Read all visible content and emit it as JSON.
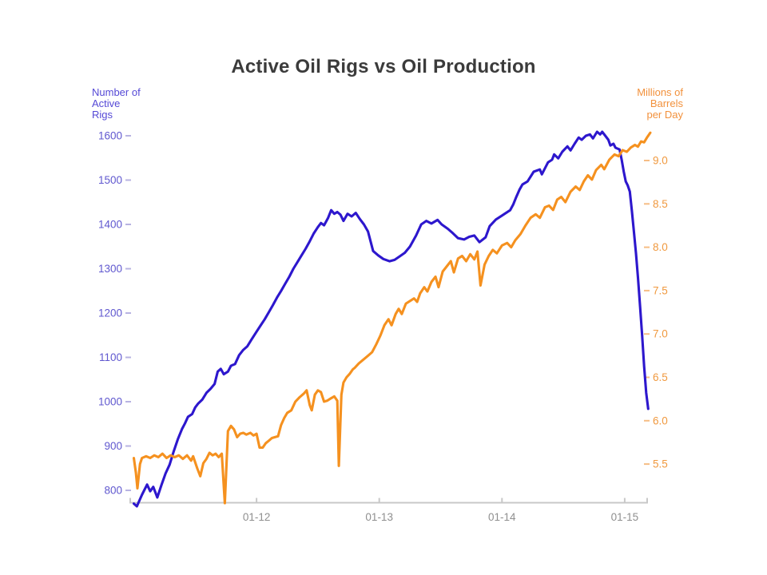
{
  "title": "Active Oil Rigs vs Oil Production",
  "chart_data": {
    "type": "line",
    "title": "Active Oil Rigs vs Oil Production",
    "x_unit": "months since 2011-01 (t)",
    "x_axis": {
      "tick_positions": [
        12,
        24,
        36,
        48
      ],
      "tick_labels": [
        "01-12",
        "01-13",
        "01-14",
        "01-15"
      ],
      "label_color": "#8f8f8f",
      "line_color": "#c8c8c8"
    },
    "left_axis": {
      "header_lines": [
        "Number of",
        "Active",
        "Rigs"
      ],
      "ticks": [
        800,
        900,
        1000,
        1100,
        1200,
        1300,
        1400,
        1500,
        1600
      ],
      "range": [
        800,
        1600
      ],
      "text_color": "#6058cf",
      "dash_color": "#b8b3e2"
    },
    "right_axis": {
      "header_lines": [
        "Millions of",
        "Barrels",
        "per Day"
      ],
      "ticks": [
        5.5,
        6.0,
        6.5,
        7.0,
        7.5,
        8.0,
        8.5,
        9.0
      ],
      "range": [
        5.5,
        9.0
      ],
      "text_color": "#f0993f",
      "dash_color": "#f6bd85"
    },
    "series": [
      {
        "name": "Number of Active Rigs",
        "axis": "left",
        "color": "#2d17cd",
        "points": [
          [
            0,
            770
          ],
          [
            0.3,
            764
          ],
          [
            0.8,
            790
          ],
          [
            1.3,
            813
          ],
          [
            1.6,
            798
          ],
          [
            1.9,
            808
          ],
          [
            2.3,
            784
          ],
          [
            2.7,
            812
          ],
          [
            3.1,
            838
          ],
          [
            3.5,
            858
          ],
          [
            3.9,
            888
          ],
          [
            4.3,
            915
          ],
          [
            4.7,
            938
          ],
          [
            5,
            951
          ],
          [
            5.3,
            966
          ],
          [
            5.7,
            972
          ],
          [
            6,
            987
          ],
          [
            6.3,
            996
          ],
          [
            6.7,
            1005
          ],
          [
            7.1,
            1020
          ],
          [
            7.5,
            1029
          ],
          [
            7.9,
            1040
          ],
          [
            8.2,
            1068
          ],
          [
            8.5,
            1074
          ],
          [
            8.8,
            1062
          ],
          [
            9.2,
            1068
          ],
          [
            9.5,
            1081
          ],
          [
            9.9,
            1085
          ],
          [
            10.3,
            1105
          ],
          [
            10.7,
            1117
          ],
          [
            11.1,
            1125
          ],
          [
            11.5,
            1140
          ],
          [
            12,
            1158
          ],
          [
            12.4,
            1172
          ],
          [
            12.8,
            1186
          ],
          [
            13.2,
            1202
          ],
          [
            13.6,
            1218
          ],
          [
            14,
            1235
          ],
          [
            14.4,
            1250
          ],
          [
            14.8,
            1266
          ],
          [
            15.2,
            1282
          ],
          [
            15.6,
            1300
          ],
          [
            16,
            1315
          ],
          [
            16.4,
            1330
          ],
          [
            16.8,
            1345
          ],
          [
            17.2,
            1362
          ],
          [
            17.6,
            1380
          ],
          [
            18,
            1394
          ],
          [
            18.3,
            1403
          ],
          [
            18.6,
            1398
          ],
          [
            19,
            1415
          ],
          [
            19.3,
            1432
          ],
          [
            19.6,
            1424
          ],
          [
            19.9,
            1428
          ],
          [
            20.2,
            1422
          ],
          [
            20.5,
            1408
          ],
          [
            20.9,
            1424
          ],
          [
            21.3,
            1418
          ],
          [
            21.7,
            1426
          ],
          [
            22.1,
            1412
          ],
          [
            22.5,
            1400
          ],
          [
            22.9,
            1384
          ],
          [
            23.4,
            1340
          ],
          [
            23.9,
            1330
          ],
          [
            24.4,
            1322
          ],
          [
            25,
            1317
          ],
          [
            25.5,
            1320
          ],
          [
            26,
            1328
          ],
          [
            26.5,
            1336
          ],
          [
            27,
            1350
          ],
          [
            27.6,
            1375
          ],
          [
            28.1,
            1400
          ],
          [
            28.6,
            1408
          ],
          [
            29.1,
            1402
          ],
          [
            29.7,
            1410
          ],
          [
            30.1,
            1400
          ],
          [
            30.7,
            1390
          ],
          [
            31.2,
            1380
          ],
          [
            31.7,
            1369
          ],
          [
            32.3,
            1366
          ],
          [
            32.8,
            1372
          ],
          [
            33.3,
            1375
          ],
          [
            33.8,
            1360
          ],
          [
            34.4,
            1371
          ],
          [
            34.8,
            1396
          ],
          [
            35.4,
            1411
          ],
          [
            36,
            1420
          ],
          [
            36.4,
            1426
          ],
          [
            36.8,
            1432
          ],
          [
            37.1,
            1445
          ],
          [
            37.4,
            1462
          ],
          [
            37.7,
            1478
          ],
          [
            38,
            1490
          ],
          [
            38.5,
            1497
          ],
          [
            39.1,
            1519
          ],
          [
            39.7,
            1524
          ],
          [
            39.9,
            1513
          ],
          [
            40.5,
            1540
          ],
          [
            40.9,
            1546
          ],
          [
            41.1,
            1558
          ],
          [
            41.5,
            1549
          ],
          [
            41.9,
            1564
          ],
          [
            42.4,
            1576
          ],
          [
            42.7,
            1567
          ],
          [
            43.1,
            1582
          ],
          [
            43.5,
            1596
          ],
          [
            43.8,
            1591
          ],
          [
            44.2,
            1600
          ],
          [
            44.6,
            1603
          ],
          [
            44.9,
            1594
          ],
          [
            45.3,
            1609
          ],
          [
            45.6,
            1603
          ],
          [
            45.8,
            1609
          ],
          [
            46.1,
            1600
          ],
          [
            46.4,
            1591
          ],
          [
            46.6,
            1578
          ],
          [
            46.9,
            1582
          ],
          [
            47.1,
            1573
          ],
          [
            47.5,
            1569
          ],
          [
            47.7,
            1546
          ],
          [
            47.9,
            1520
          ],
          [
            48.1,
            1497
          ],
          [
            48.3,
            1488
          ],
          [
            48.5,
            1474
          ],
          [
            48.7,
            1430
          ],
          [
            48.9,
            1384
          ],
          [
            49.1,
            1335
          ],
          [
            49.3,
            1280
          ],
          [
            49.5,
            1216
          ],
          [
            49.7,
            1150
          ],
          [
            49.9,
            1080
          ],
          [
            50.1,
            1020
          ],
          [
            50.3,
            984
          ]
        ]
      },
      {
        "name": "Oil Production (million barrels per day)",
        "axis": "right",
        "color": "#f5911f",
        "points": [
          [
            0,
            5.57
          ],
          [
            0.2,
            5.4
          ],
          [
            0.35,
            5.22
          ],
          [
            0.6,
            5.5
          ],
          [
            0.8,
            5.57
          ],
          [
            1.2,
            5.59
          ],
          [
            1.6,
            5.57
          ],
          [
            2,
            5.6
          ],
          [
            2.4,
            5.58
          ],
          [
            2.8,
            5.62
          ],
          [
            3.2,
            5.57
          ],
          [
            3.6,
            5.6
          ],
          [
            4,
            5.58
          ],
          [
            4.4,
            5.6
          ],
          [
            4.8,
            5.56
          ],
          [
            5.2,
            5.6
          ],
          [
            5.6,
            5.54
          ],
          [
            5.8,
            5.59
          ],
          [
            6.2,
            5.45
          ],
          [
            6.5,
            5.36
          ],
          [
            6.8,
            5.51
          ],
          [
            7.1,
            5.56
          ],
          [
            7.4,
            5.63
          ],
          [
            7.7,
            5.6
          ],
          [
            8,
            5.62
          ],
          [
            8.3,
            5.58
          ],
          [
            8.6,
            5.62
          ],
          [
            8.9,
            5.05
          ],
          [
            9.2,
            5.88
          ],
          [
            9.5,
            5.94
          ],
          [
            9.8,
            5.9
          ],
          [
            10.1,
            5.81
          ],
          [
            10.4,
            5.85
          ],
          [
            10.7,
            5.86
          ],
          [
            11,
            5.84
          ],
          [
            11.4,
            5.86
          ],
          [
            11.7,
            5.83
          ],
          [
            12,
            5.85
          ],
          [
            12.3,
            5.69
          ],
          [
            12.6,
            5.69
          ],
          [
            12.9,
            5.74
          ],
          [
            13.2,
            5.77
          ],
          [
            13.5,
            5.8
          ],
          [
            13.8,
            5.81
          ],
          [
            14.1,
            5.82
          ],
          [
            14.4,
            5.95
          ],
          [
            14.7,
            6.03
          ],
          [
            15,
            6.09
          ],
          [
            15.4,
            6.12
          ],
          [
            15.8,
            6.22
          ],
          [
            16.2,
            6.27
          ],
          [
            16.6,
            6.31
          ],
          [
            16.9,
            6.35
          ],
          [
            17.2,
            6.18
          ],
          [
            17.4,
            6.12
          ],
          [
            17.7,
            6.3
          ],
          [
            18,
            6.35
          ],
          [
            18.3,
            6.33
          ],
          [
            18.6,
            6.22
          ],
          [
            18.9,
            6.23
          ],
          [
            19.3,
            6.26
          ],
          [
            19.6,
            6.28
          ],
          [
            19.9,
            6.23
          ],
          [
            20.05,
            5.48
          ],
          [
            20.3,
            6.3
          ],
          [
            20.5,
            6.44
          ],
          [
            20.8,
            6.5
          ],
          [
            21.1,
            6.54
          ],
          [
            21.4,
            6.59
          ],
          [
            21.6,
            6.61
          ],
          [
            22,
            6.66
          ],
          [
            22.4,
            6.7
          ],
          [
            22.9,
            6.75
          ],
          [
            23.3,
            6.79
          ],
          [
            23.7,
            6.88
          ],
          [
            24.1,
            6.98
          ],
          [
            24.5,
            7.1
          ],
          [
            24.9,
            7.17
          ],
          [
            25.2,
            7.1
          ],
          [
            25.6,
            7.23
          ],
          [
            25.9,
            7.29
          ],
          [
            26.2,
            7.23
          ],
          [
            26.6,
            7.35
          ],
          [
            27,
            7.38
          ],
          [
            27.4,
            7.41
          ],
          [
            27.7,
            7.37
          ],
          [
            28,
            7.47
          ],
          [
            28.4,
            7.54
          ],
          [
            28.7,
            7.49
          ],
          [
            29.1,
            7.6
          ],
          [
            29.5,
            7.66
          ],
          [
            29.8,
            7.54
          ],
          [
            30.2,
            7.72
          ],
          [
            30.6,
            7.78
          ],
          [
            31,
            7.84
          ],
          [
            31.3,
            7.71
          ],
          [
            31.7,
            7.87
          ],
          [
            32.1,
            7.9
          ],
          [
            32.5,
            7.84
          ],
          [
            32.9,
            7.92
          ],
          [
            33.3,
            7.86
          ],
          [
            33.6,
            7.95
          ],
          [
            33.9,
            7.56
          ],
          [
            34.3,
            7.8
          ],
          [
            34.7,
            7.9
          ],
          [
            35.1,
            7.97
          ],
          [
            35.5,
            7.93
          ],
          [
            36,
            8.02
          ],
          [
            36.5,
            8.05
          ],
          [
            36.9,
            8.0
          ],
          [
            37.3,
            8.08
          ],
          [
            37.8,
            8.15
          ],
          [
            38.3,
            8.25
          ],
          [
            38.8,
            8.34
          ],
          [
            39.3,
            8.38
          ],
          [
            39.7,
            8.34
          ],
          [
            40.2,
            8.46
          ],
          [
            40.6,
            8.48
          ],
          [
            41,
            8.43
          ],
          [
            41.4,
            8.55
          ],
          [
            41.8,
            8.58
          ],
          [
            42.2,
            8.52
          ],
          [
            42.7,
            8.64
          ],
          [
            43.2,
            8.7
          ],
          [
            43.6,
            8.66
          ],
          [
            44,
            8.76
          ],
          [
            44.4,
            8.83
          ],
          [
            44.8,
            8.78
          ],
          [
            45.2,
            8.89
          ],
          [
            45.7,
            8.95
          ],
          [
            46,
            8.9
          ],
          [
            46.5,
            9.01
          ],
          [
            47,
            9.07
          ],
          [
            47.4,
            9.05
          ],
          [
            47.8,
            9.12
          ],
          [
            48.2,
            9.1
          ],
          [
            48.6,
            9.15
          ],
          [
            49,
            9.18
          ],
          [
            49.3,
            9.16
          ],
          [
            49.6,
            9.22
          ],
          [
            49.9,
            9.21
          ],
          [
            50.2,
            9.27
          ],
          [
            50.5,
            9.32
          ]
        ]
      }
    ],
    "legend": "none",
    "grid": "off",
    "title_color": "#3b3b3b"
  }
}
